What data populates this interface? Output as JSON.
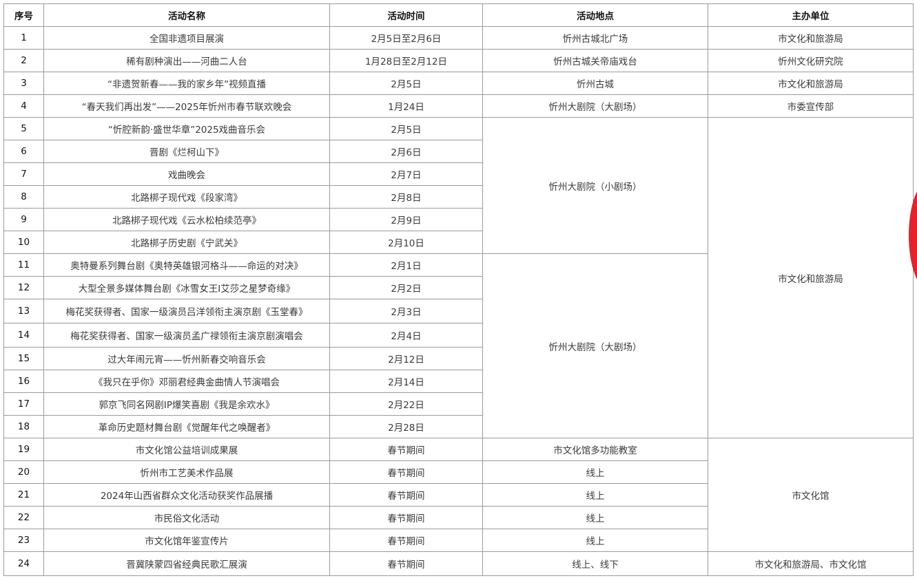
{
  "headers": [
    "序号",
    "活动名称",
    "活动时间",
    "活动地点",
    "主办单位"
  ],
  "seal_color": "#e8202a",
  "rows": [
    {
      "no": "1",
      "name": "全国非遗项目展演",
      "time": "2月5日至2月6日",
      "venue": "忻州古城北广场",
      "org": "市文化和旅游局"
    },
    {
      "no": "2",
      "name": "稀有剧种演出——河曲二人台",
      "time": "1月28日至2月12日",
      "venue": "忻州古城关帝庙戏台",
      "org": "忻州文化研究院"
    },
    {
      "no": "3",
      "name": "“非遗贺新春——我的家乡年”视频直播",
      "time": "2月5日",
      "venue": "忻州古城",
      "org": "市文化和旅游局"
    },
    {
      "no": "4",
      "name": "“春天我们再出发”——2025年忻州市春节联欢晚会",
      "time": "1月24日",
      "venue": "忻州大剧院（大剧场）",
      "org": "市委宣传部"
    },
    {
      "no": "5",
      "name": "“忻腔新韵·盛世华章”2025戏曲音乐会",
      "time": "2月5日",
      "venue": "忻州大剧院（小剧场）",
      "venue_span": 6,
      "org": "市文化和旅游局",
      "org_span": 14
    },
    {
      "no": "6",
      "name": "晋剧《烂柯山下》",
      "time": "2月6日"
    },
    {
      "no": "7",
      "name": "戏曲晚会",
      "time": "2月7日"
    },
    {
      "no": "8",
      "name": "北路梆子现代戏《段家湾》",
      "time": "2月8日"
    },
    {
      "no": "9",
      "name": "北路梆子现代戏《云水松柏续范亭》",
      "time": "2月9日"
    },
    {
      "no": "10",
      "name": "北路梆子历史剧《宁武关》",
      "time": "2月10日"
    },
    {
      "no": "11",
      "name": "奥特曼系列舞台剧《奥特英雄银河格斗——命运的对决》",
      "time": "2月1日",
      "venue": "忻州大剧院（大剧场）",
      "venue_span": 8
    },
    {
      "no": "12",
      "name": "大型全景多媒体舞台剧《冰雪女王Ⅰ艾莎之星梦奇缘》",
      "time": "2月2日"
    },
    {
      "no": "13",
      "name": "梅花奖获得者、国家一级演员吕洋领衔主演京剧《玉堂春》",
      "time": "2月3日"
    },
    {
      "no": "14",
      "name": "梅花奖获得者、国家一级演员孟广禄领衔主演京剧演唱会",
      "time": "2月4日"
    },
    {
      "no": "15",
      "name": "过大年闹元宵——忻州新春交响音乐会",
      "time": "2月12日"
    },
    {
      "no": "16",
      "name": "《我只在乎你》邓丽君经典金曲情人节演唱会",
      "time": "2月14日"
    },
    {
      "no": "17",
      "name": "郭京飞同名网剧IP爆笑喜剧《我是余欢水》",
      "time": "2月22日"
    },
    {
      "no": "18",
      "name": "革命历史题材舞台剧《觉醒年代之唤醒者》",
      "time": "2月28日"
    },
    {
      "no": "19",
      "name": "市文化馆公益培训成果展",
      "time": "春节期间",
      "venue": "市文化馆多功能教室",
      "org": "市文化馆",
      "org_span": 5
    },
    {
      "no": "20",
      "name": "忻州市工艺美术作品展",
      "time": "春节期间",
      "venue": "线上"
    },
    {
      "no": "21",
      "name": "2024年山西省群众文化活动获奖作品展播",
      "time": "春节期间",
      "venue": "线上"
    },
    {
      "no": "22",
      "name": "市民俗文化活动",
      "time": "春节期间",
      "venue": "线上"
    },
    {
      "no": "23",
      "name": "市文化馆年鉴宣传片",
      "time": "春节期间",
      "venue": "线上"
    },
    {
      "no": "24",
      "name": "晋冀陕蒙四省经典民歌汇展演",
      "time": "春节期间",
      "venue": "线上、线下",
      "org": "市文化和旅游局、市文化馆"
    }
  ]
}
